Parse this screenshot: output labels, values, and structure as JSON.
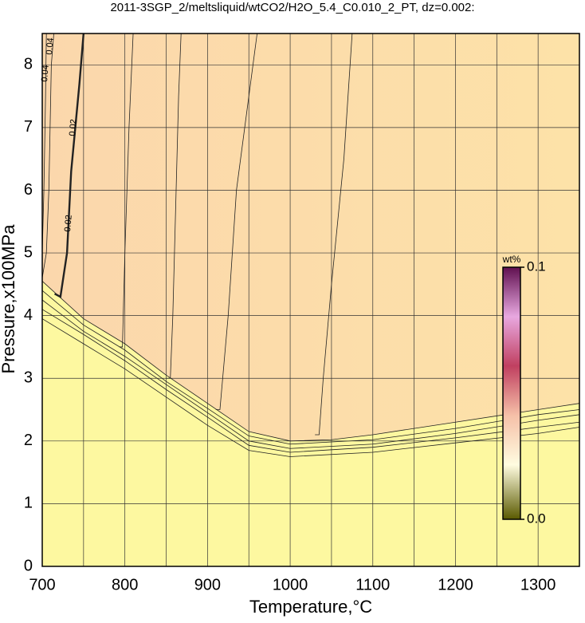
{
  "chart_data": {
    "type": "contour",
    "title": "2011-3SGP_2/meltsliquid/wtCO2/H2O_5.4_C0.010_2_PT, dz=0.002:",
    "x_label": "Temperature,°C",
    "y_label": "Pressure,x100MPa",
    "xlim": [
      700,
      1350
    ],
    "ylim": [
      0,
      8.5
    ],
    "xticks": [
      700,
      800,
      900,
      1000,
      1100,
      1200,
      1300
    ],
    "xminorticks": [
      750,
      850,
      950,
      1050,
      1150,
      1250
    ],
    "yticks": [
      0,
      1,
      2,
      3,
      4,
      5,
      6,
      7,
      8
    ],
    "grid": true,
    "solid_color": "#fdf8a0",
    "melt_colors": [
      "#fbd7ac",
      "#fde2a8"
    ],
    "contours": [
      {
        "x": [
          700,
          750,
          800,
          850,
          900,
          950,
          1000,
          1050,
          1100,
          1200,
          1300,
          1350
        ],
        "y": [
          4.55,
          3.95,
          3.55,
          3.05,
          2.6,
          2.15,
          2.0,
          2.02,
          2.1,
          2.3,
          2.5,
          2.6
        ],
        "bold": false
      },
      {
        "x": [
          700,
          750,
          800,
          850,
          900,
          950,
          1000,
          1100,
          1200,
          1300,
          1350
        ],
        "y": [
          4.4,
          3.85,
          3.45,
          2.95,
          2.52,
          2.08,
          1.95,
          2.02,
          2.2,
          2.42,
          2.5
        ],
        "bold": false
      },
      {
        "x": [
          700,
          750,
          800,
          850,
          900,
          950,
          1000,
          1100,
          1200,
          1300,
          1350
        ],
        "y": [
          4.25,
          3.75,
          3.35,
          2.9,
          2.45,
          2.0,
          1.88,
          1.95,
          2.12,
          2.33,
          2.42
        ],
        "bold": false
      },
      {
        "x": [
          700,
          750,
          800,
          850,
          900,
          950,
          1000,
          1100,
          1200,
          1300,
          1350
        ],
        "y": [
          4.1,
          3.7,
          3.28,
          2.82,
          2.38,
          1.93,
          1.82,
          1.9,
          2.05,
          2.22,
          2.3
        ],
        "bold": false
      },
      {
        "x": [
          700,
          750,
          800,
          850,
          900,
          950,
          1000,
          1100,
          1200,
          1300,
          1350
        ],
        "y": [
          3.95,
          3.55,
          3.15,
          2.7,
          2.25,
          1.85,
          1.75,
          1.82,
          1.97,
          2.12,
          2.22
        ],
        "bold": false
      },
      {
        "x": [
          1030,
          1035,
          1040,
          1050,
          1065,
          1075
        ],
        "y": [
          2.1,
          2.1,
          3.0,
          4.5,
          6.5,
          8.5
        ],
        "bold": false
      },
      {
        "x": [
          910,
          915,
          925,
          935,
          950,
          960
        ],
        "y": [
          2.5,
          2.5,
          4.0,
          6.0,
          7.5,
          8.5
        ],
        "bold": false
      },
      {
        "x": [
          850,
          855,
          858,
          862,
          865,
          868
        ],
        "y": [
          3.0,
          3.0,
          4.0,
          6.0,
          7.5,
          8.5
        ],
        "bold": false
      },
      {
        "x": [
          793,
          797,
          800,
          805,
          810
        ],
        "y": [
          3.5,
          3.5,
          5.0,
          7.0,
          8.5
        ],
        "bold": false
      },
      {
        "x": [
          715,
          722,
          730,
          735,
          740,
          745,
          750
        ],
        "y": [
          4.35,
          4.3,
          5.0,
          6.3,
          7.0,
          7.7,
          8.5
        ],
        "bold": true
      },
      {
        "x": [
          700,
          705,
          708,
          711,
          714
        ],
        "y": [
          4.6,
          5.0,
          6.0,
          8.0,
          8.5
        ],
        "bold": false
      },
      {
        "x": [
          700,
          702,
          704,
          705
        ],
        "y": [
          5.0,
          6.0,
          7.5,
          8.5
        ],
        "bold": false
      }
    ],
    "contour_labels": [
      "0.02",
      "0.02",
      "0.04",
      "0.04"
    ],
    "colorbar": {
      "label": "wt%",
      "clim": [
        0,
        0.1
      ],
      "ticks": [
        {
          "value": 0,
          "label": "0.0"
        },
        {
          "value": 0.1,
          "label": "0.1"
        }
      ],
      "colors": [
        "#5a5a00",
        "#fffce0",
        "#f6c0a8",
        "#c04060",
        "#e8a8e0",
        "#601050"
      ]
    }
  }
}
